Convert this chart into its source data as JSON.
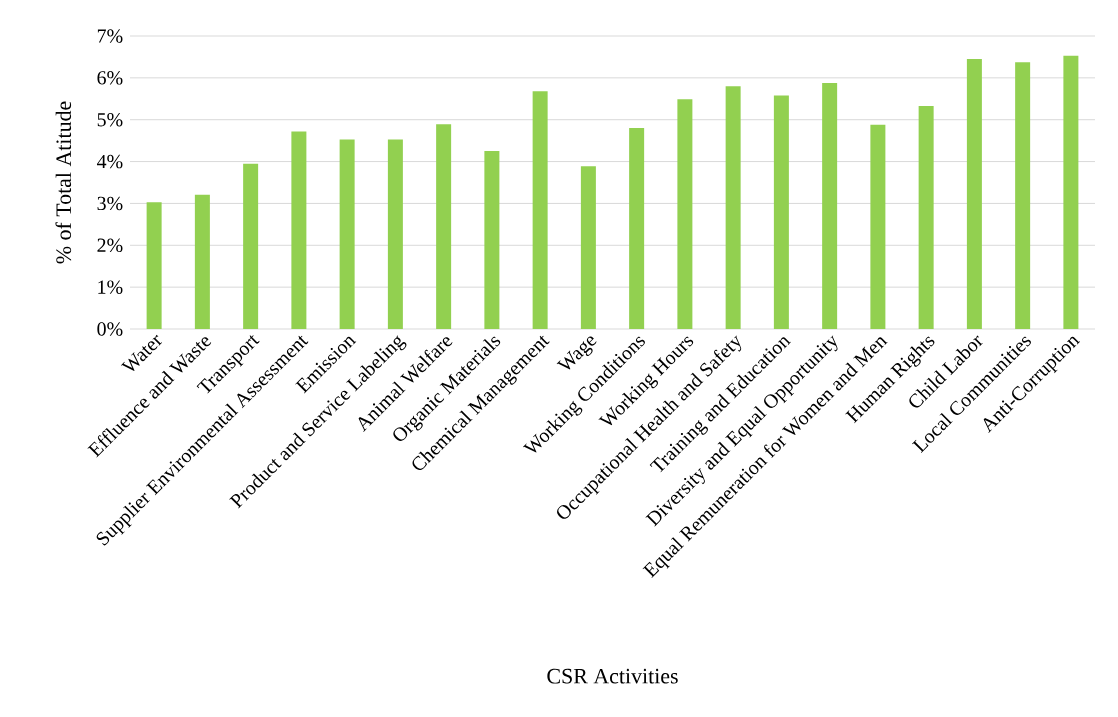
{
  "chart_data": {
    "type": "bar",
    "xlabel": "CSR Activities",
    "ylabel": "% of Total Atitude",
    "categories": [
      "Water",
      "Effluence and Waste",
      "Transport",
      "Supplier Environmental Assessment",
      "Emission",
      "Product and Service Labeling",
      "Animal Welfare",
      "Organic Materials",
      "Chemical Management",
      "Wage",
      "Working Conditions",
      "Working Hours",
      "Occupational Health and Safety",
      "Training and Education",
      "Diversity and Equal Opportunity",
      "Equal Remuneration for Women and Men",
      "Human Rights",
      "Child Labor",
      "Local Communities",
      "Anti-Corruption"
    ],
    "values": [
      3.03,
      3.21,
      3.95,
      4.72,
      4.53,
      4.53,
      4.89,
      4.25,
      5.68,
      3.89,
      4.8,
      5.49,
      5.8,
      5.58,
      5.88,
      4.88,
      5.33,
      6.45,
      6.37,
      6.53
    ],
    "color": "#92d050",
    "ylim": [
      0,
      7
    ],
    "yticks": [
      {
        "value": 0,
        "label": "0%"
      },
      {
        "value": 1,
        "label": "1%"
      },
      {
        "value": 2,
        "label": "2%"
      },
      {
        "value": 3,
        "label": "3%"
      },
      {
        "value": 4,
        "label": "4%"
      },
      {
        "value": 5,
        "label": "5%"
      },
      {
        "value": 6,
        "label": "6%"
      },
      {
        "value": 7,
        "label": "7%"
      }
    ],
    "grid": "y"
  }
}
